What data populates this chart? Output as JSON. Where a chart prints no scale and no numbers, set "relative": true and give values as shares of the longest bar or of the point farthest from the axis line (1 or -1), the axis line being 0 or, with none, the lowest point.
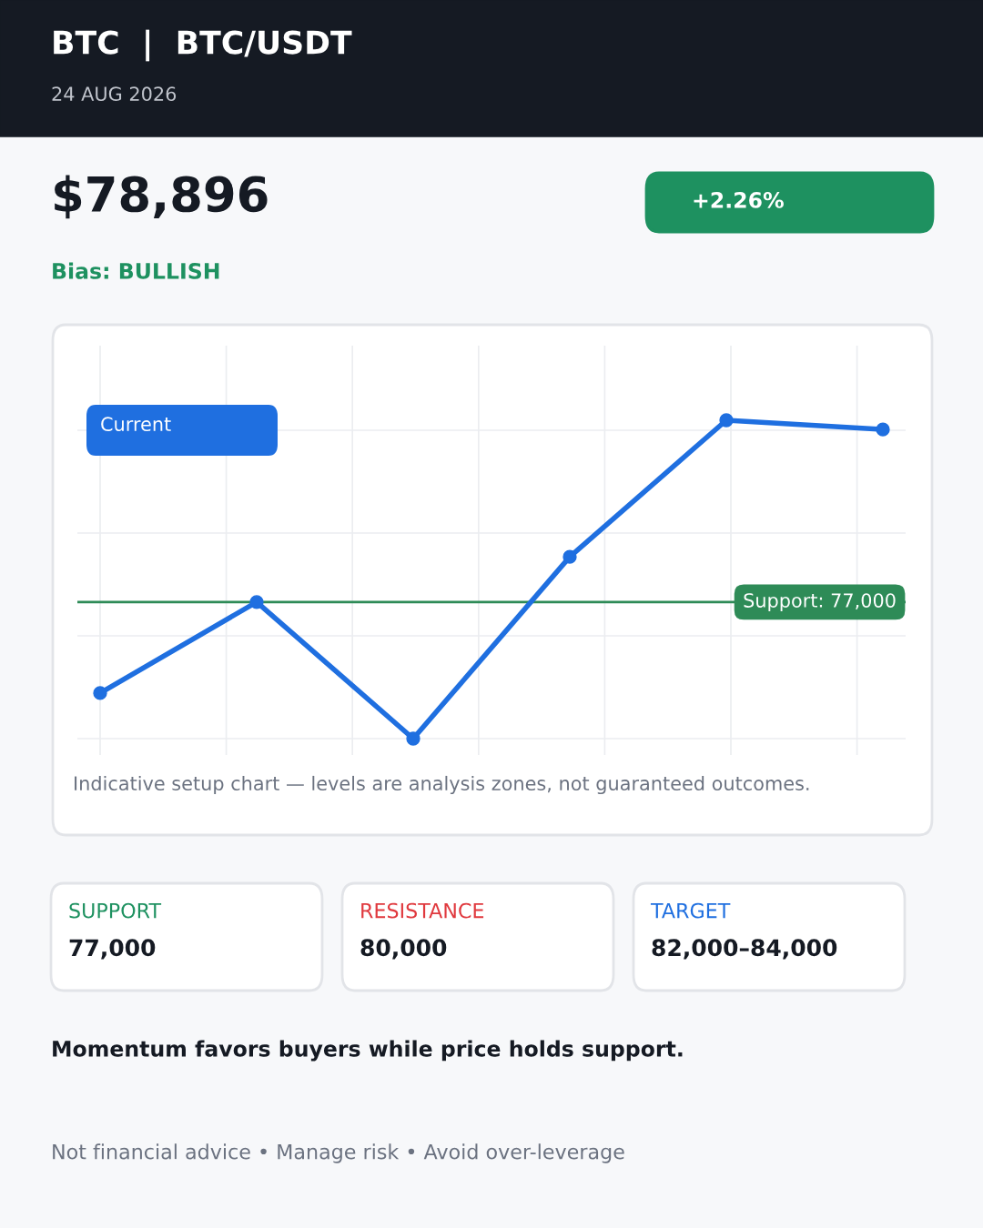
{
  "chart_data": {
    "type": "line",
    "title": "BTC  |  BTC/USDT",
    "subtitle": "24 AUG 2026",
    "categories": [
      null,
      null,
      null,
      null,
      null,
      null
    ],
    "series": [
      {
        "color": "#1f6fe0",
        "values": [
          0.143,
          0.429,
          0,
          0.571,
          1,
          0.971
        ]
      }
    ],
    "relative": true,
    "marker": "circle",
    "line_style": "solid",
    "grid": true,
    "ref_lines": [
      {
        "axis": "y",
        "value": 0.429,
        "color": "#2e8b57"
      }
    ],
    "annotations": [
      "$78,896",
      "+2.26%",
      "Bias: BULLISH",
      "Current",
      "Indicative setup chart — levels are analysis zones, not guaranteed outcomes.",
      "SUPPORT",
      "77,000",
      "RESISTANCE",
      "80,000",
      "TARGET",
      "82,000–84,000",
      "Momentum favors buyers while price holds support.",
      "Not financial advice • Manage risk • Avoid over-leverage",
      "Support: 77,000"
    ]
  }
}
